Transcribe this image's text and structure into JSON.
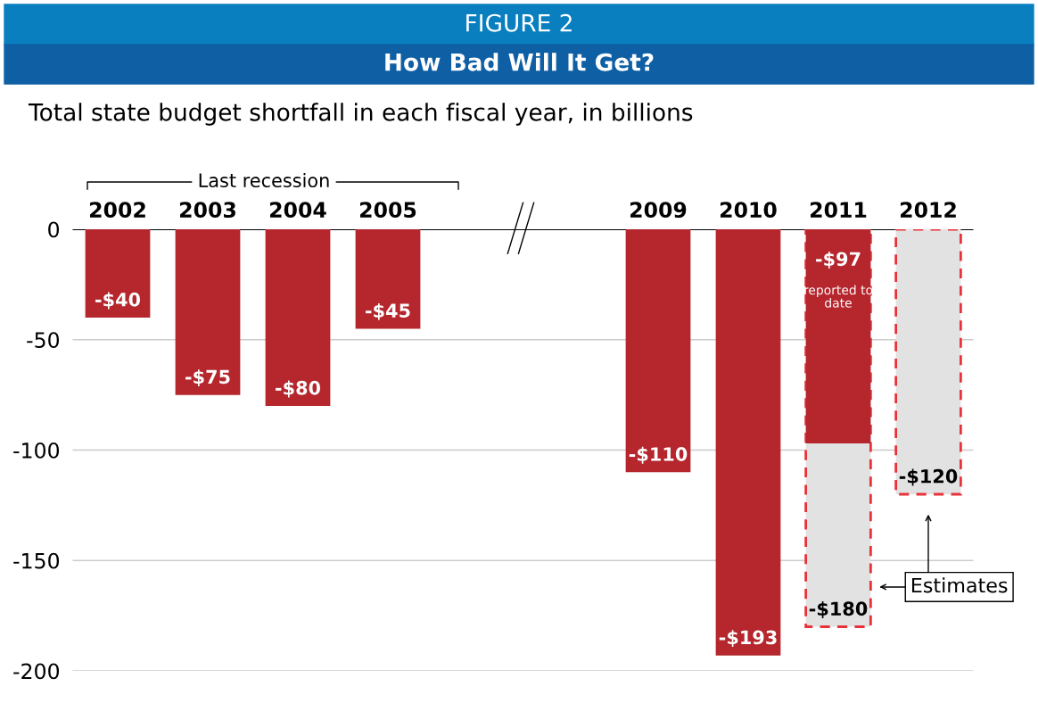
{
  "chart_data": {
    "type": "bar",
    "title": "FIGURE 2",
    "subtitle": "How Bad Will It Get?",
    "categories": [
      "2002",
      "2003",
      "2004",
      "2005",
      null,
      null,
      "2009",
      "2010",
      "2011",
      "2012"
    ],
    "stacked": false,
    "series": [
      {
        "color": "#b5262d",
        "values": [
          -40,
          -75,
          -80,
          -45,
          null,
          null,
          -110,
          -193,
          -97,
          null
        ],
        "value_labels": [
          "-$40",
          "-$75",
          "-$80",
          "-$45",
          null,
          null,
          "-$110",
          "-$193",
          "-$97",
          null
        ]
      },
      {
        "name": "Estimates",
        "color": "#e8323a",
        "line_style": "dashed",
        "values": [
          null,
          null,
          null,
          null,
          null,
          null,
          null,
          null,
          -180,
          -120
        ],
        "value_labels": [
          null,
          null,
          null,
          null,
          null,
          null,
          null,
          null,
          "-$180",
          "-$120"
        ]
      }
    ],
    "ylim": [
      -200,
      0
    ],
    "yticks": [
      0,
      -50,
      -100,
      -150,
      -200
    ],
    "grid": "y",
    "legend": false,
    "annotations": [
      "Total state budget shortfall in each fiscal year, in billions",
      "Last recession",
      "reported to date"
    ]
  }
}
